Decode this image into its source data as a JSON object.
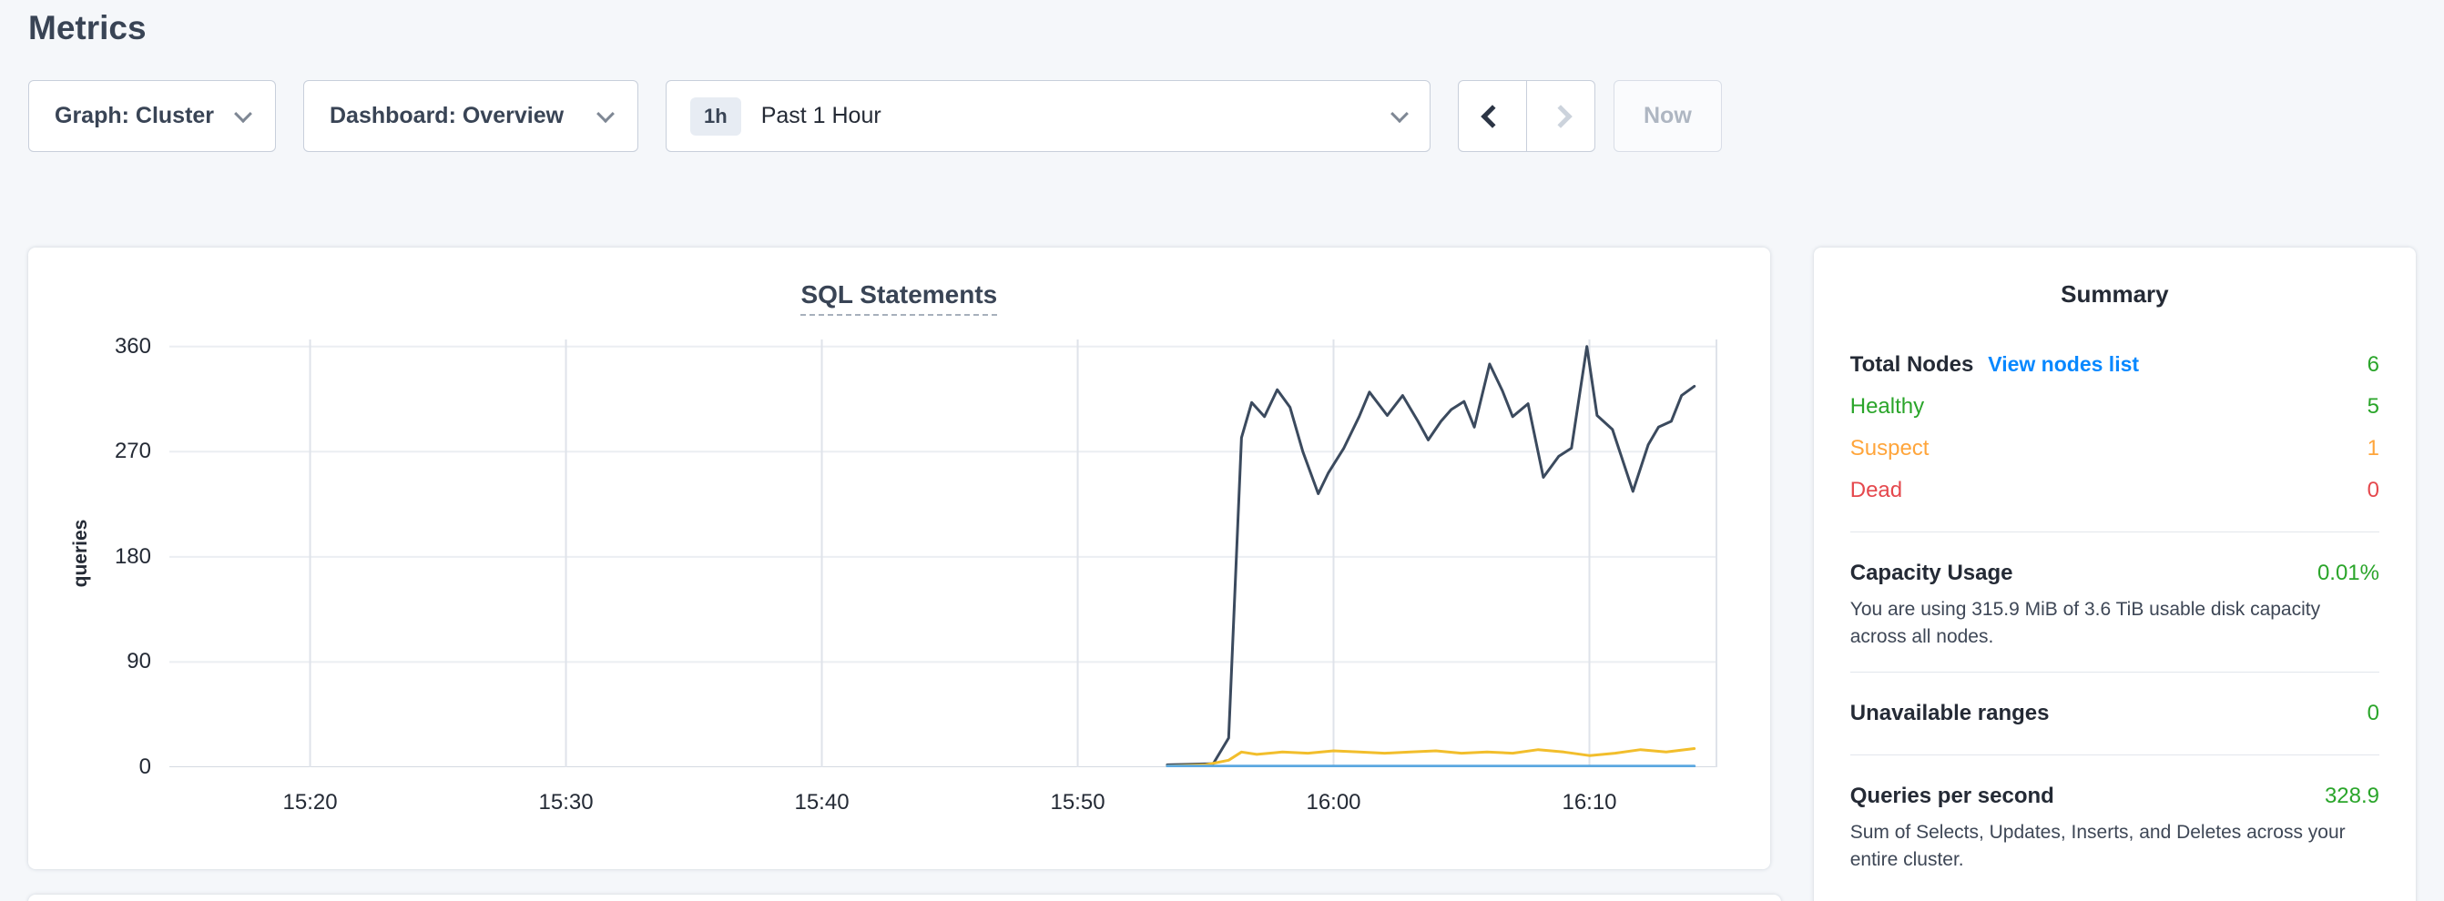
{
  "page": {
    "title": "Metrics"
  },
  "toolbar": {
    "graph": {
      "label": "Graph:",
      "value": "Cluster"
    },
    "dashboard": {
      "label": "Dashboard:",
      "value": "Overview"
    },
    "time_window": {
      "badge": "1h",
      "value": "Past 1 Hour"
    },
    "now_label": "Now"
  },
  "chart": {
    "title": "SQL Statements",
    "ylabel": "queries"
  },
  "chart_data": {
    "type": "line",
    "title": "SQL Statements",
    "xlabel": "",
    "ylabel": "queries",
    "x_unit": "minutes since 15:00",
    "xlim": [
      14.5,
      75
    ],
    "ylim": [
      0,
      366
    ],
    "grid": true,
    "legend": "none",
    "grid_color_vertical": "#dfe3ea",
    "grid_color_horizontal": "#ebeef2",
    "axis_color": "#d5dae1",
    "xticks": [
      {
        "v": 20,
        "label": "15:20"
      },
      {
        "v": 30,
        "label": "15:30"
      },
      {
        "v": 40,
        "label": "15:40"
      },
      {
        "v": 50,
        "label": "15:50"
      },
      {
        "v": 60,
        "label": "16:00"
      },
      {
        "v": 70,
        "label": "16:10"
      }
    ],
    "yticks": [
      {
        "v": 0,
        "label": "0"
      },
      {
        "v": 90,
        "label": "90"
      },
      {
        "v": 180,
        "label": "180"
      },
      {
        "v": 270,
        "label": "270"
      },
      {
        "v": 360,
        "label": "360"
      }
    ],
    "series": [
      {
        "name": "series-1",
        "color": "#3b4a5e",
        "width": 3,
        "points": [
          [
            53.5,
            2
          ],
          [
            55.3,
            3
          ],
          [
            55.9,
            25
          ],
          [
            56.4,
            282
          ],
          [
            56.8,
            312
          ],
          [
            57.3,
            300
          ],
          [
            57.8,
            323
          ],
          [
            58.3,
            308
          ],
          [
            58.8,
            270
          ],
          [
            59.4,
            234
          ],
          [
            59.8,
            252
          ],
          [
            60.4,
            273
          ],
          [
            61.0,
            300
          ],
          [
            61.4,
            321
          ],
          [
            62.1,
            301
          ],
          [
            62.7,
            318
          ],
          [
            63.3,
            296
          ],
          [
            63.7,
            280
          ],
          [
            64.2,
            296
          ],
          [
            64.6,
            306
          ],
          [
            65.1,
            313
          ],
          [
            65.5,
            291
          ],
          [
            66.1,
            345
          ],
          [
            66.6,
            322
          ],
          [
            67.0,
            300
          ],
          [
            67.6,
            311
          ],
          [
            68.2,
            248
          ],
          [
            68.8,
            266
          ],
          [
            69.3,
            273
          ],
          [
            69.9,
            360
          ],
          [
            70.3,
            301
          ],
          [
            70.9,
            289
          ],
          [
            71.7,
            236
          ],
          [
            72.3,
            276
          ],
          [
            72.7,
            291
          ],
          [
            73.2,
            296
          ],
          [
            73.6,
            318
          ],
          [
            74.1,
            326
          ]
        ]
      },
      {
        "name": "series-2",
        "color": "#f2be2c",
        "width": 3,
        "points": [
          [
            53.5,
            1
          ],
          [
            55.0,
            2
          ],
          [
            55.9,
            6
          ],
          [
            56.4,
            13
          ],
          [
            57.0,
            11
          ],
          [
            58.0,
            13
          ],
          [
            59.0,
            12
          ],
          [
            60.0,
            14
          ],
          [
            61.0,
            13
          ],
          [
            62.0,
            12
          ],
          [
            63.0,
            13
          ],
          [
            64.0,
            14
          ],
          [
            65.0,
            12
          ],
          [
            66.0,
            13
          ],
          [
            67.0,
            12
          ],
          [
            68.0,
            15
          ],
          [
            69.0,
            13
          ],
          [
            70.0,
            10
          ],
          [
            71.0,
            12
          ],
          [
            72.0,
            15
          ],
          [
            73.0,
            13
          ],
          [
            74.1,
            16
          ]
        ]
      },
      {
        "name": "series-3",
        "color": "#5ca8e0",
        "width": 3,
        "points": [
          [
            53.5,
            1
          ],
          [
            74.1,
            1
          ]
        ]
      }
    ]
  },
  "summary": {
    "title": "Summary",
    "total_nodes": {
      "label": "Total Nodes",
      "link": "View nodes list",
      "value": "6"
    },
    "healthy": {
      "label": "Healthy",
      "value": "5"
    },
    "suspect": {
      "label": "Suspect",
      "value": "1"
    },
    "dead": {
      "label": "Dead",
      "value": "0"
    },
    "capacity": {
      "label": "Capacity Usage",
      "value": "0.01%",
      "description": "You are using 315.9 MiB of 3.6 TiB usable disk capacity across all nodes."
    },
    "unavailable": {
      "label": "Unavailable ranges",
      "value": "0"
    },
    "qps": {
      "label": "Queries per second",
      "value": "328.9",
      "description": "Sum of Selects, Updates, Inserts, and Deletes across your entire cluster."
    }
  },
  "colors": {
    "link": "#0788ff",
    "green": "#2aa52a",
    "amber": "#ffa53b",
    "red": "#e5484d",
    "heading": "#394455"
  }
}
